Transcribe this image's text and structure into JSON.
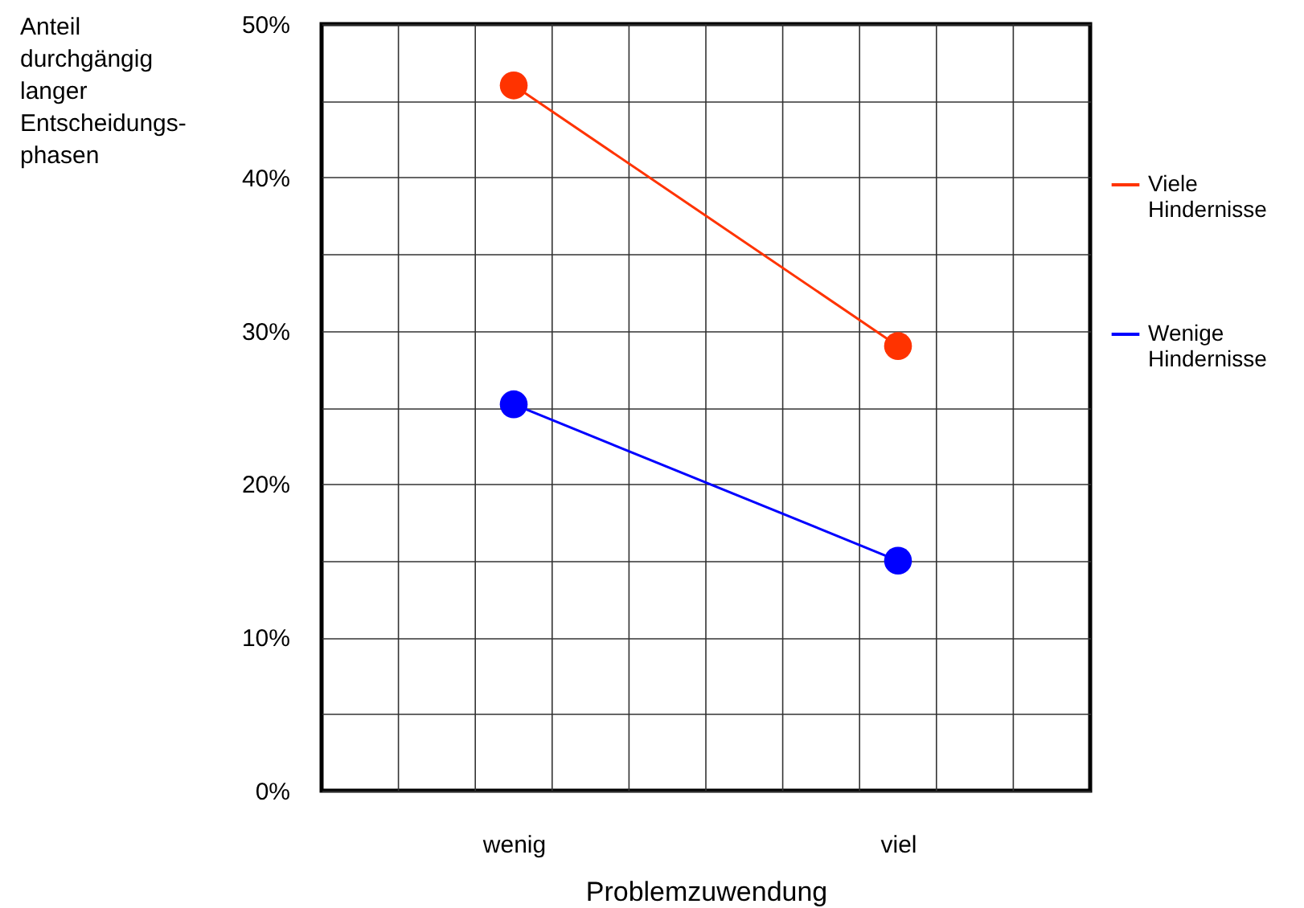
{
  "chart_data": {
    "type": "line",
    "xlabel": "Problemzuwendung",
    "ylabel": "Anteil durchgängig langer Entscheidungs-phasen",
    "categories": [
      "wenig",
      "viel"
    ],
    "series": [
      {
        "name": "Viele Hindernisse",
        "color": "#ff3300",
        "values": [
          46,
          29
        ]
      },
      {
        "name": "Wenige Hindernisse",
        "color": "#0000ff",
        "values": [
          25.2,
          15
        ]
      }
    ],
    "ylim": [
      0,
      50
    ],
    "yticks": [
      {
        "value": 0,
        "label": "0%"
      },
      {
        "value": 5,
        "label": null
      },
      {
        "value": 10,
        "label": "10%"
      },
      {
        "value": 15,
        "label": null
      },
      {
        "value": 20,
        "label": "20%"
      },
      {
        "value": 25,
        "label": null
      },
      {
        "value": 30,
        "label": "30%"
      },
      {
        "value": 35,
        "label": null
      },
      {
        "value": 40,
        "label": "40%"
      },
      {
        "value": 45,
        "label": null
      },
      {
        "value": 50,
        "label": "50%"
      }
    ],
    "grid": true,
    "legend": "right",
    "marker": "circle",
    "line_style": "solid"
  }
}
